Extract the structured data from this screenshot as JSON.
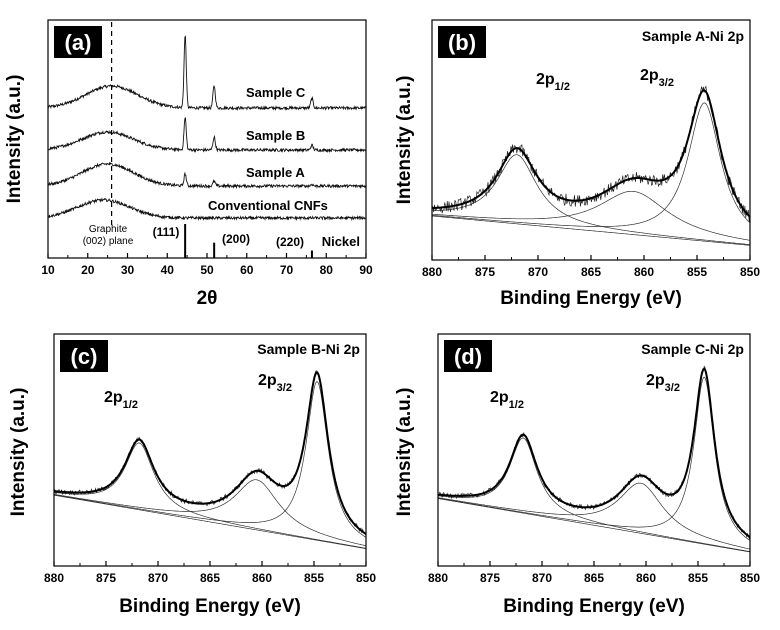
{
  "figure": {
    "panels": [
      {
        "id": "a",
        "letter": "(a)",
        "ylabel": "Intensity (a.u.)",
        "xlabel": "2θ",
        "series_labels": [
          "Sample C",
          "Sample B",
          "Sample A",
          "Conventional CNFs"
        ],
        "graphite_label_1": "Graphite",
        "graphite_label_2": "(002) plane",
        "nickel_label": "Nickel",
        "hkl_labels": [
          "(111)",
          "(200)",
          "(220)"
        ]
      },
      {
        "id": "b",
        "letter": "(b)",
        "sample_title": "Sample A-Ni 2p",
        "ylabel": "Intensity (a.u.)",
        "xlabel": "Binding Energy (eV)",
        "peak1_main": "2p",
        "peak1_sub": "1/2",
        "peak2_main": "2p",
        "peak2_sub": "3/2"
      },
      {
        "id": "c",
        "letter": "(c)",
        "sample_title": "Sample B-Ni 2p",
        "ylabel": "Intensity (a.u.)",
        "xlabel": "Binding Energy (eV)",
        "peak1_main": "2p",
        "peak1_sub": "1/2",
        "peak2_main": "2p",
        "peak2_sub": "3/2"
      },
      {
        "id": "d",
        "letter": "(d)",
        "sample_title": "Sample C-Ni 2p",
        "ylabel": "Intensity (a.u.)",
        "xlabel": "Binding Energy (eV)",
        "peak1_main": "2p",
        "peak1_sub": "1/2",
        "peak2_main": "2p",
        "peak2_sub": "3/2"
      }
    ]
  },
  "chart_data": [
    {
      "panel": "a",
      "type": "line",
      "title": "",
      "xlabel": "2θ",
      "ylabel": "Intensity (a.u.)",
      "xlim": [
        10,
        90
      ],
      "xticks": [
        10,
        20,
        30,
        40,
        50,
        60,
        70,
        80,
        90
      ],
      "y_ticks_shown": false,
      "graphite_reference_2theta": 26,
      "nickel_reference_peaks": [
        {
          "two_theta": 44.5,
          "label": "(111)",
          "relative_intensity": 1.0
        },
        {
          "two_theta": 51.8,
          "label": "(200)",
          "relative_intensity": 0.45
        },
        {
          "two_theta": 76.4,
          "label": "(220)",
          "relative_intensity": 0.22
        }
      ],
      "series": [
        {
          "name": "Sample C",
          "broad_peak_2theta": 26,
          "ni_peak_relative_heights": {
            "44.5": 0.9,
            "51.8": 0.28,
            "76.4": 0.12
          }
        },
        {
          "name": "Sample B",
          "broad_peak_2theta": 25,
          "ni_peak_relative_heights": {
            "44.5": 0.4,
            "51.8": 0.16,
            "76.4": 0.06
          }
        },
        {
          "name": "Sample A",
          "broad_peak_2theta": 25,
          "ni_peak_relative_heights": {
            "44.5": 0.15,
            "51.8": 0.06,
            "76.4": 0.02
          }
        },
        {
          "name": "Conventional CNFs",
          "broad_peak_2theta": 24,
          "ni_peak_relative_heights": {
            "44.5": 0.0,
            "51.8": 0.0,
            "76.4": 0.0
          }
        }
      ]
    },
    {
      "panel": "b",
      "type": "line",
      "title": "Sample A-Ni 2p",
      "xlabel": "Binding Energy (eV)",
      "ylabel": "Intensity (a.u.)",
      "xlim": [
        880,
        850
      ],
      "xticks": [
        880,
        875,
        870,
        865,
        860,
        855,
        850
      ],
      "y_ticks_shown": false,
      "peaks": [
        {
          "label": "2p1/2",
          "center_eV": 872.0,
          "relative_height": 0.4
        },
        {
          "label": "satellite",
          "center_eV": 861.0,
          "relative_height": 0.25
        },
        {
          "label": "2p3/2",
          "center_eV": 854.3,
          "relative_height": 0.8
        }
      ]
    },
    {
      "panel": "c",
      "type": "line",
      "title": "Sample B-Ni 2p",
      "xlabel": "Binding Energy (eV)",
      "ylabel": "Intensity (a.u.)",
      "xlim": [
        880,
        850
      ],
      "xticks": [
        880,
        875,
        870,
        865,
        860,
        855,
        850
      ],
      "y_ticks_shown": false,
      "peaks": [
        {
          "label": "2p1/2",
          "center_eV": 871.8,
          "relative_height": 0.4
        },
        {
          "label": "satellite",
          "center_eV": 860.5,
          "relative_height": 0.3
        },
        {
          "label": "2p3/2",
          "center_eV": 854.7,
          "relative_height": 0.95
        }
      ]
    },
    {
      "panel": "d",
      "type": "line",
      "title": "Sample C-Ni 2p",
      "xlabel": "Binding Energy (eV)",
      "ylabel": "Intensity (a.u.)",
      "xlim": [
        880,
        850
      ],
      "xticks": [
        880,
        875,
        870,
        865,
        860,
        855,
        850
      ],
      "y_ticks_shown": false,
      "peaks": [
        {
          "label": "2p1/2",
          "center_eV": 871.8,
          "relative_height": 0.45
        },
        {
          "label": "satellite",
          "center_eV": 860.5,
          "relative_height": 0.3
        },
        {
          "label": "2p3/2",
          "center_eV": 854.4,
          "relative_height": 1.0
        }
      ]
    }
  ]
}
